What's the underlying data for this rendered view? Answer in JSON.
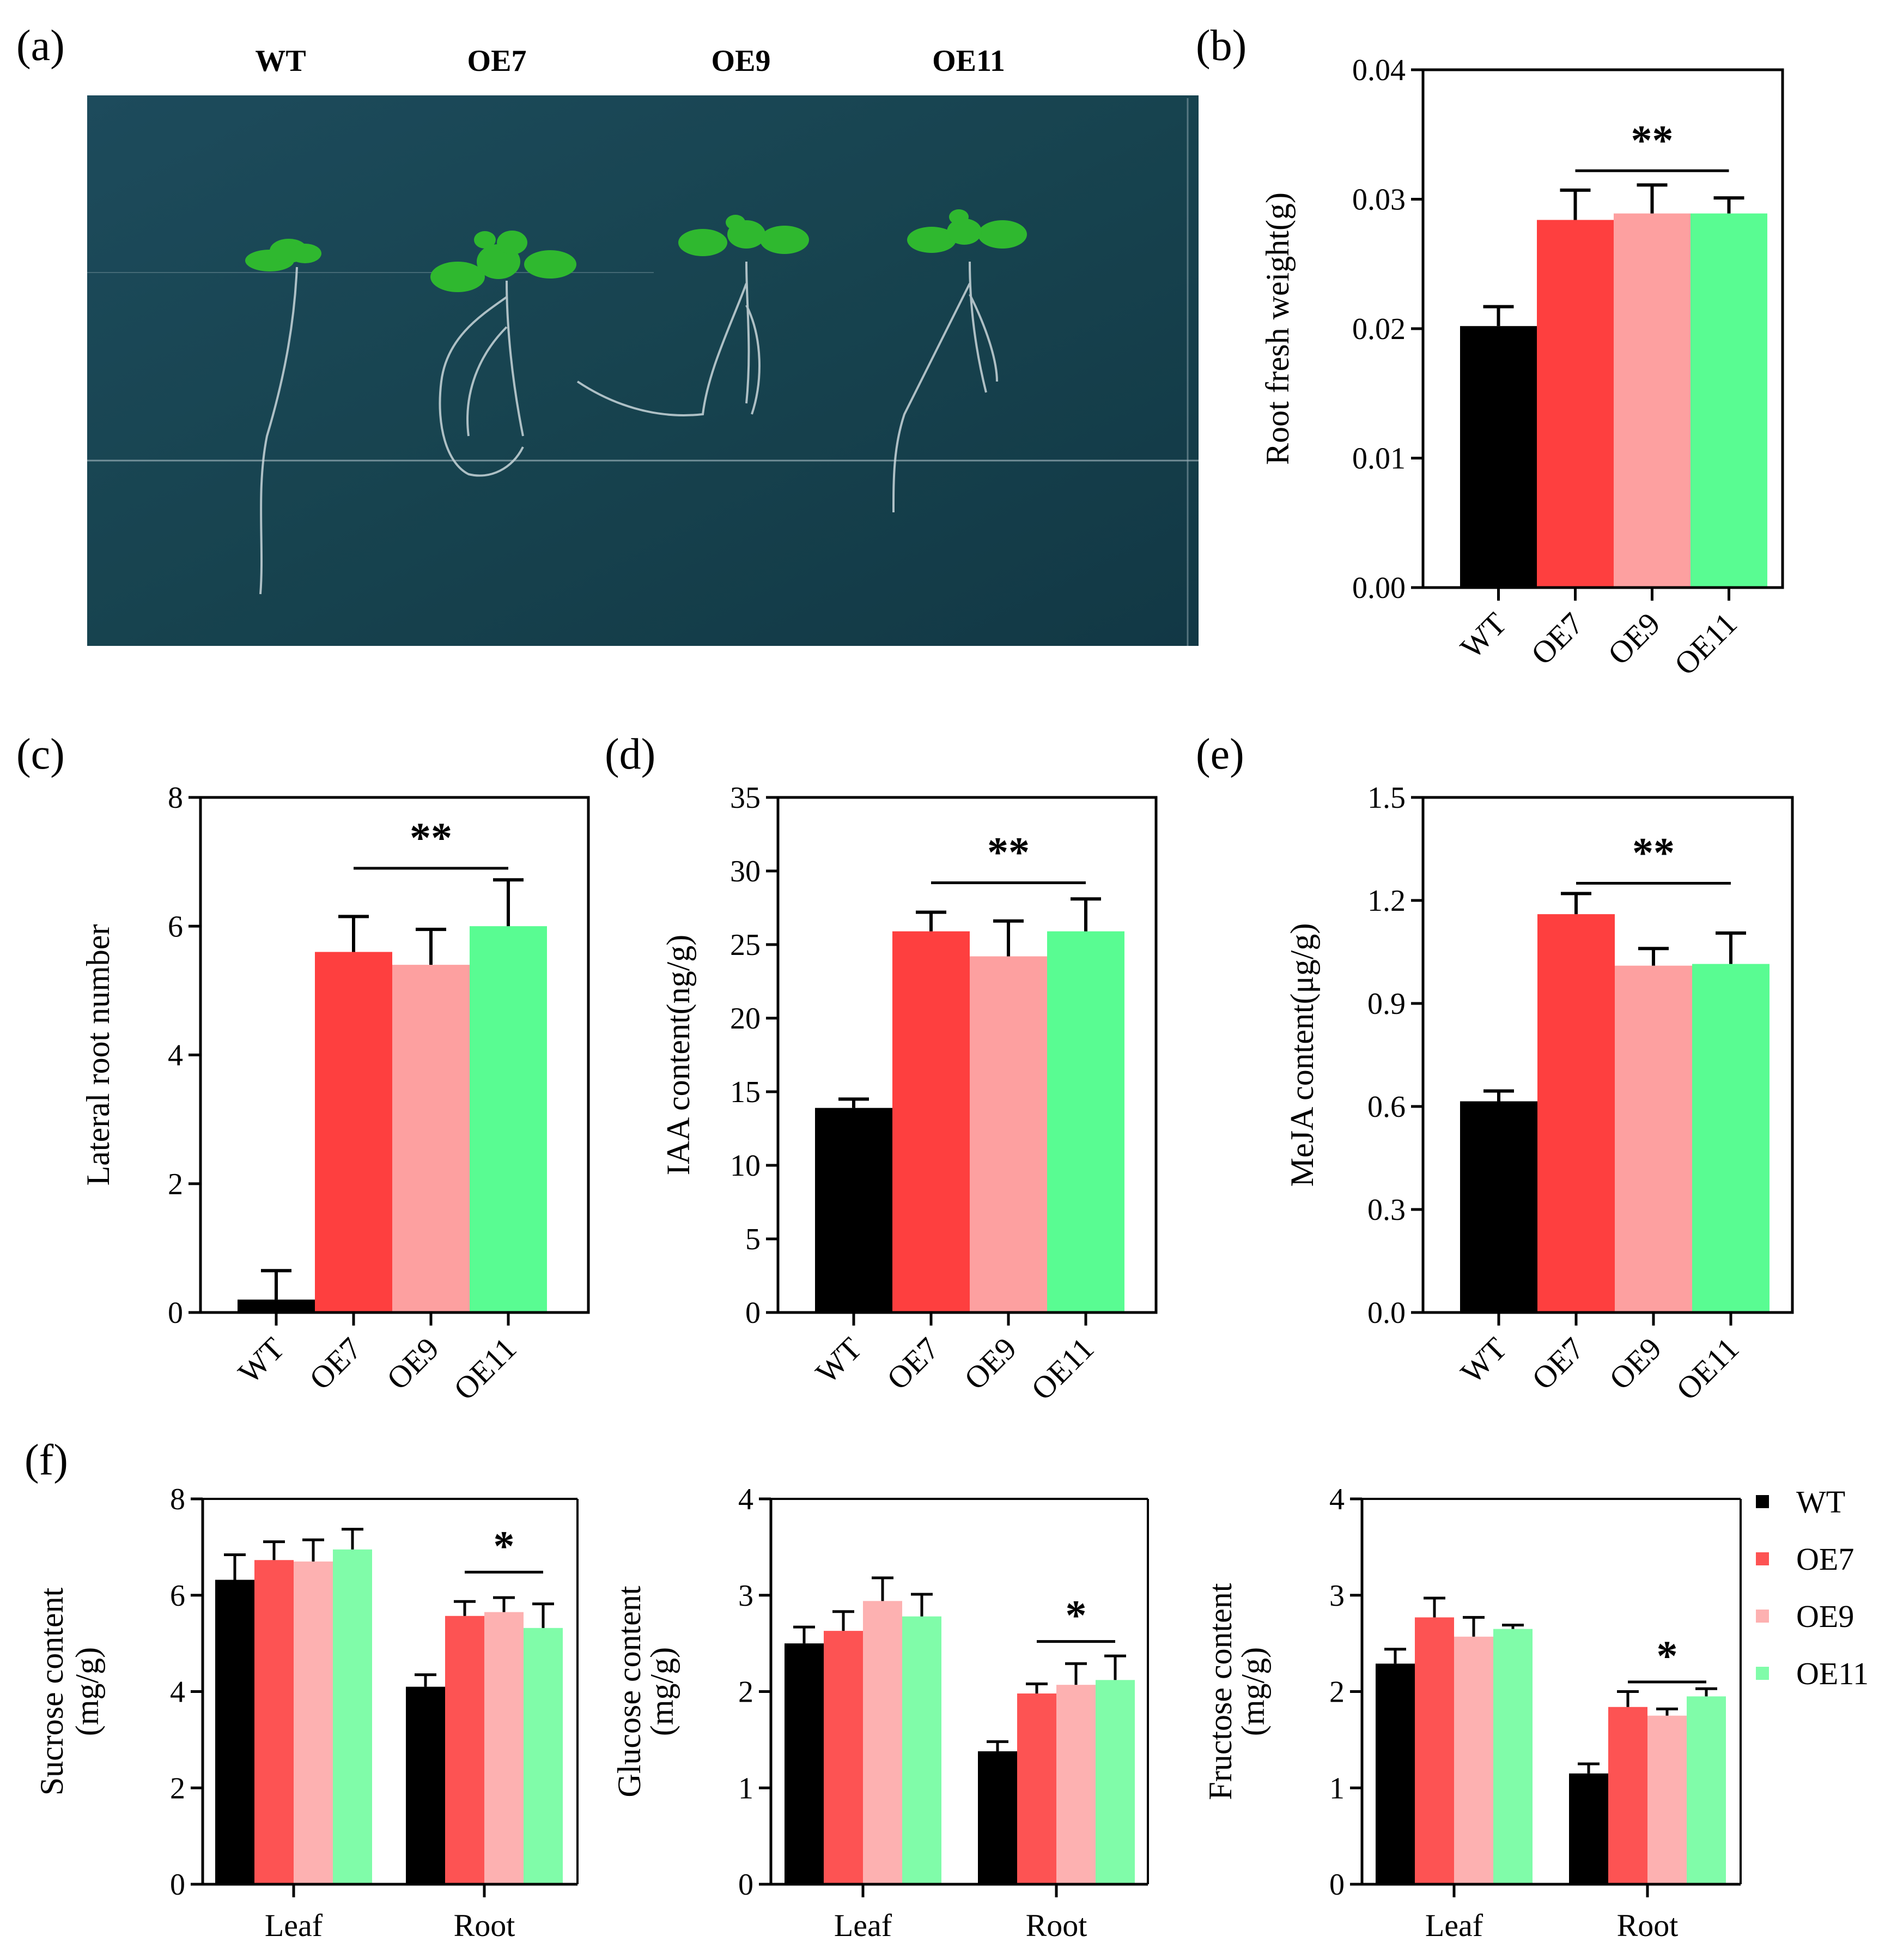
{
  "colors": {
    "WT": "#000000",
    "OE7": "#fe3f3f",
    "OE9": "#fda0a0",
    "OE11": "#59fc92"
  },
  "colors_f": {
    "WT": "#000000",
    "OE7": "#fd5353",
    "OE9": "#fdb1b1",
    "OE11": "#80fca9"
  },
  "panel_a": {
    "label": "(a)",
    "plant_labels": [
      "WT",
      "OE7",
      "OE9",
      "OE11"
    ]
  },
  "chart_data": [
    {
      "id": "b",
      "label": "(b)",
      "type": "bar",
      "categories": [
        "WT",
        "OE7",
        "OE9",
        "OE11"
      ],
      "values": [
        0.0202,
        0.0284,
        0.0289,
        0.0289
      ],
      "errors": [
        0.0015,
        0.0023,
        0.0022,
        0.0012
      ],
      "ylabel": "Root fresh weight(g)",
      "ylim": [
        0,
        0.04
      ],
      "yticks": [
        0,
        0.01,
        0.02,
        0.03,
        0.04
      ],
      "ytick_labels": [
        "0.00",
        "0.01",
        "0.02",
        "0.03",
        "0.04"
      ],
      "significance": {
        "text": "**",
        "from": 1,
        "to": 3,
        "level": 0.0322
      }
    },
    {
      "id": "c",
      "label": "(c)",
      "type": "bar",
      "categories": [
        "WT",
        "OE7",
        "OE9",
        "OE11"
      ],
      "values": [
        0.2,
        5.6,
        5.4,
        6.0
      ],
      "errors": [
        0.45,
        0.55,
        0.55,
        0.72
      ],
      "ylabel": "Lateral root number",
      "ylim": [
        0,
        8
      ],
      "yticks": [
        0,
        2,
        4,
        6,
        8
      ],
      "ytick_labels": [
        "0",
        "2",
        "4",
        "6",
        "8"
      ],
      "significance": {
        "text": "**",
        "from": 1,
        "to": 3,
        "level": 6.9
      }
    },
    {
      "id": "d",
      "label": "(d)",
      "type": "bar",
      "categories": [
        "WT",
        "OE7",
        "OE9",
        "OE11"
      ],
      "values": [
        13.9,
        25.9,
        24.2,
        25.9
      ],
      "errors": [
        0.6,
        1.3,
        2.4,
        2.2
      ],
      "ylabel": "IAA content(ng/g)",
      "ylim": [
        0,
        35
      ],
      "yticks": [
        0,
        5,
        10,
        15,
        20,
        25,
        30,
        35
      ],
      "ytick_labels": [
        "0",
        "5",
        "10",
        "15",
        "20",
        "25",
        "30",
        "35"
      ],
      "significance": {
        "text": "**",
        "from": 1,
        "to": 3,
        "level": 29.2
      }
    },
    {
      "id": "e",
      "label": "(e)",
      "type": "bar",
      "categories": [
        "WT",
        "OE7",
        "OE9",
        "OE11"
      ],
      "values": [
        0.615,
        1.16,
        1.01,
        1.015
      ],
      "errors": [
        0.03,
        0.06,
        0.05,
        0.09
      ],
      "ylabel": "MeJA content(μg/g)",
      "ylim": [
        0,
        1.5
      ],
      "yticks": [
        0,
        0.3,
        0.6,
        0.9,
        1.2,
        1.5
      ],
      "ytick_labels": [
        "0.0",
        "0.3",
        "0.6",
        "0.9",
        "1.2",
        "1.5"
      ],
      "significance": {
        "text": "**",
        "from": 1,
        "to": 3,
        "level": 1.25
      }
    },
    {
      "id": "f1",
      "label": "(f)",
      "type": "bar",
      "categories": [
        "Leaf",
        "Root"
      ],
      "series": [
        {
          "name": "WT",
          "values": [
            6.32,
            4.1
          ],
          "errors": [
            0.52,
            0.25
          ]
        },
        {
          "name": "OE7",
          "values": [
            6.73,
            5.57
          ],
          "errors": [
            0.38,
            0.3
          ]
        },
        {
          "name": "OE9",
          "values": [
            6.7,
            5.65
          ],
          "errors": [
            0.45,
            0.3
          ]
        },
        {
          "name": "OE11",
          "values": [
            6.95,
            5.32
          ],
          "errors": [
            0.42,
            0.5
          ]
        }
      ],
      "ylabel_lines": [
        "Sucrose content",
        "(mg/g)"
      ],
      "ylim": [
        0,
        8
      ],
      "yticks": [
        0,
        2,
        4,
        6,
        8
      ],
      "ytick_labels": [
        "0",
        "2",
        "4",
        "6",
        "8"
      ],
      "significance": {
        "text": "*",
        "group": 1,
        "from": 1,
        "to": 3,
        "level": 6.48
      }
    },
    {
      "id": "f2",
      "type": "bar",
      "categories": [
        "Leaf",
        "Root"
      ],
      "series": [
        {
          "name": "WT",
          "values": [
            2.5,
            1.38
          ],
          "errors": [
            0.17,
            0.1
          ]
        },
        {
          "name": "OE7",
          "values": [
            2.63,
            1.98
          ],
          "errors": [
            0.2,
            0.1
          ]
        },
        {
          "name": "OE9",
          "values": [
            2.94,
            2.07
          ],
          "errors": [
            0.24,
            0.22
          ]
        },
        {
          "name": "OE11",
          "values": [
            2.78,
            2.12
          ],
          "errors": [
            0.23,
            0.25
          ]
        }
      ],
      "ylabel_lines": [
        "Glucose content",
        "(mg/g)"
      ],
      "ylim": [
        0,
        4
      ],
      "yticks": [
        0,
        1,
        2,
        3,
        4
      ],
      "ytick_labels": [
        "0",
        "1",
        "2",
        "3",
        "4"
      ],
      "significance": {
        "text": "*",
        "group": 1,
        "from": 1,
        "to": 3,
        "level": 2.52
      }
    },
    {
      "id": "f3",
      "type": "bar",
      "categories": [
        "Leaf",
        "Root"
      ],
      "series": [
        {
          "name": "WT",
          "values": [
            2.29,
            1.15
          ],
          "errors": [
            0.15,
            0.1
          ]
        },
        {
          "name": "OE7",
          "values": [
            2.77,
            1.84
          ],
          "errors": [
            0.2,
            0.16
          ]
        },
        {
          "name": "OE9",
          "values": [
            2.57,
            1.75
          ],
          "errors": [
            0.2,
            0.07
          ]
        },
        {
          "name": "OE11",
          "values": [
            2.65,
            1.95
          ],
          "errors": [
            0.04,
            0.08
          ]
        }
      ],
      "ylabel_lines": [
        "Fructose content",
        "(mg/g)"
      ],
      "ylim": [
        0,
        4
      ],
      "yticks": [
        0,
        1,
        2,
        3,
        4
      ],
      "ytick_labels": [
        "0",
        "1",
        "2",
        "3",
        "4"
      ],
      "significance": {
        "text": "*",
        "group": 1,
        "from": 1,
        "to": 3,
        "level": 2.1
      }
    }
  ],
  "legend": {
    "entries": [
      "WT",
      "OE7",
      "OE9",
      "OE11"
    ]
  }
}
